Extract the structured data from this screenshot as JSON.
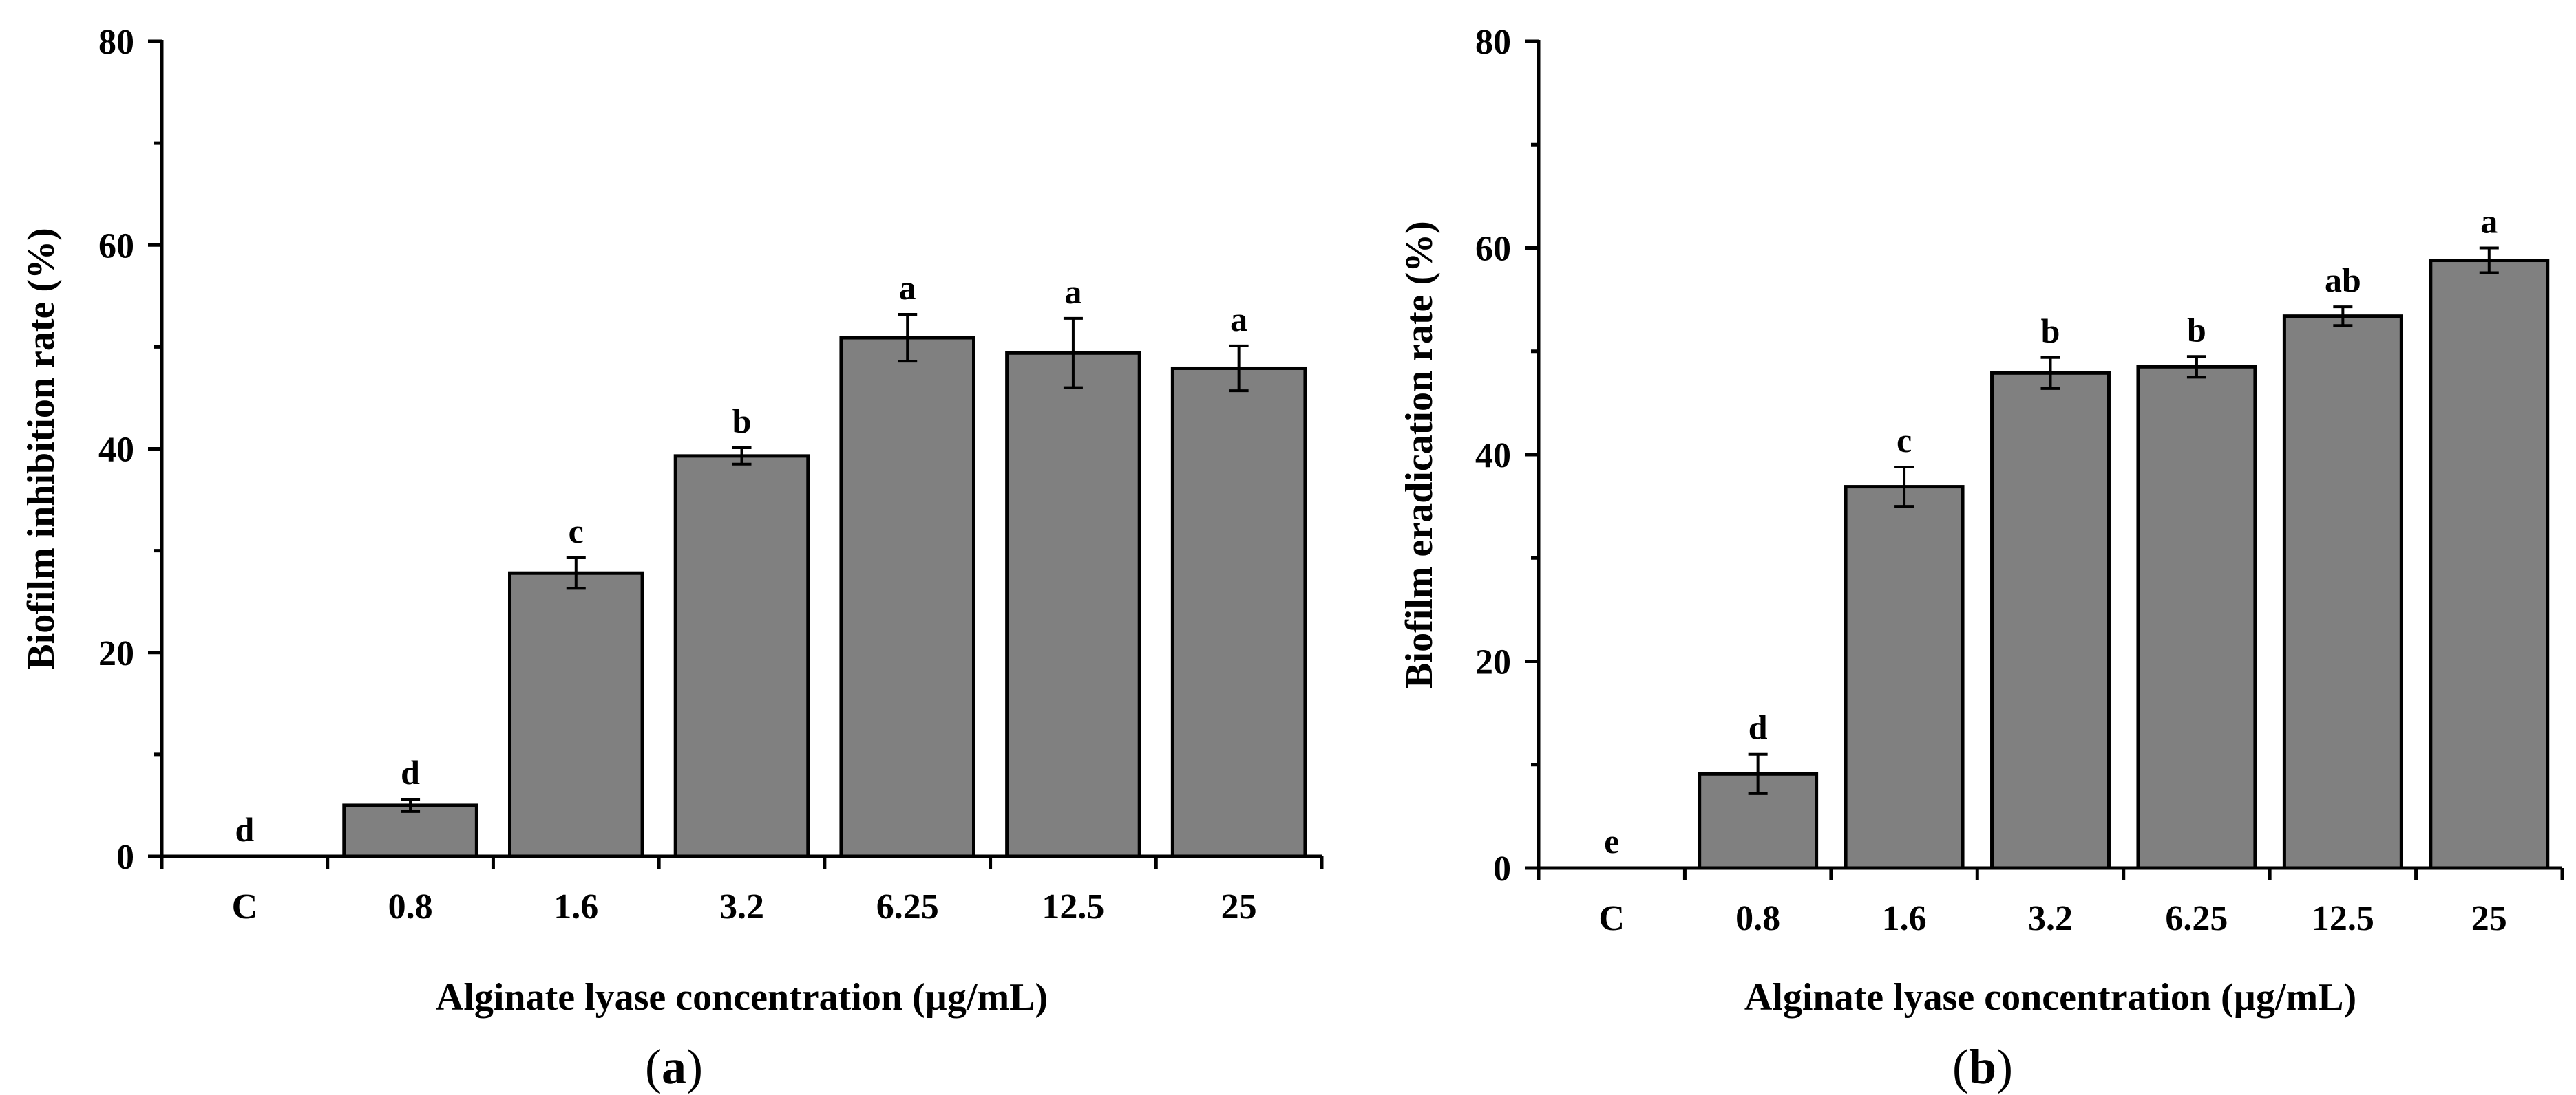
{
  "chart_data": [
    {
      "type": "bar",
      "panel": "a",
      "caption_parts": [
        "(",
        "a",
        ")"
      ],
      "title": "",
      "xlabel": "Alginate lyase concentration (µg/mL)",
      "ylabel": "Biofilm inhibition rate (%)",
      "categories": [
        "C",
        "0.8",
        "1.6",
        "3.2",
        "6.25",
        "12.5",
        "25"
      ],
      "values": [
        0,
        5,
        27.8,
        39.3,
        50.9,
        49.4,
        47.9
      ],
      "errors": [
        0,
        0.6,
        1.5,
        0.8,
        2.3,
        3.4,
        2.2
      ],
      "significance": [
        "d",
        "d",
        "c",
        "b",
        "a",
        "a",
        "a"
      ],
      "ylim": [
        0,
        80
      ],
      "yticks": [
        "0",
        "20",
        "40",
        "60",
        "80"
      ],
      "bar_color": "#808080"
    },
    {
      "type": "bar",
      "panel": "b",
      "caption_parts": [
        "(",
        "b",
        ")"
      ],
      "title": "",
      "xlabel": "Alginate lyase concentration (µg/mL)",
      "ylabel": "Biofilm eradication rate (%)",
      "categories": [
        "C",
        "0.8",
        "1.6",
        "3.2",
        "6.25",
        "12.5",
        "25"
      ],
      "values": [
        0,
        9.1,
        36.9,
        47.9,
        48.5,
        53.4,
        58.8
      ],
      "errors": [
        0,
        1.9,
        1.9,
        1.5,
        1.0,
        0.9,
        1.2
      ],
      "significance": [
        "e",
        "d",
        "c",
        "b",
        "b",
        "ab",
        "a"
      ],
      "ylim": [
        0,
        80
      ],
      "yticks": [
        "0",
        "20",
        "40",
        "60",
        "80"
      ],
      "bar_color": "#808080"
    }
  ]
}
